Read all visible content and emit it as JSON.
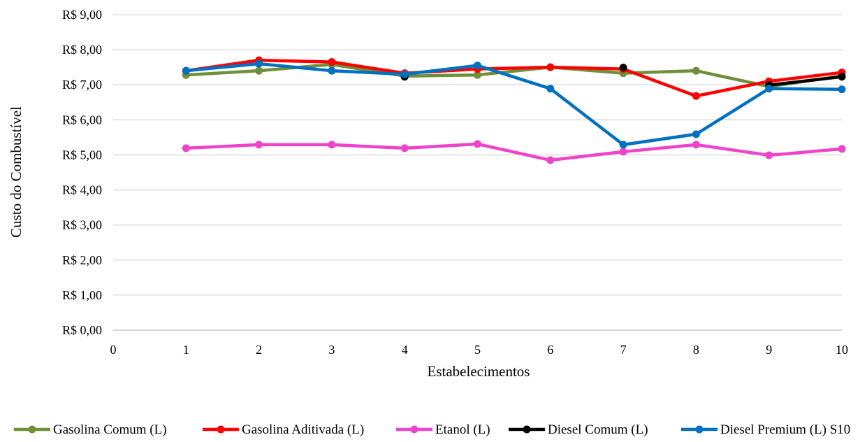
{
  "chart_data": {
    "type": "line",
    "title": "",
    "xlabel": "Estabelecimentos",
    "ylabel": "Custo do Combustível",
    "x_ticks": [
      "0",
      "1",
      "2",
      "3",
      "4",
      "5",
      "6",
      "7",
      "8",
      "9",
      "10"
    ],
    "xlim": [
      0,
      10
    ],
    "ylim": [
      0,
      9
    ],
    "y_ticks": [
      "R$ 0,00",
      "R$ 1,00",
      "R$ 2,00",
      "R$ 3,00",
      "R$ 4,00",
      "R$ 5,00",
      "R$ 6,00",
      "R$ 7,00",
      "R$ 8,00",
      "R$ 9,00"
    ],
    "grid": "horizontal",
    "legend_position": "bottom",
    "x": [
      1,
      2,
      3,
      4,
      5,
      6,
      7,
      8,
      9,
      10
    ],
    "series": [
      {
        "name": "Gasolina Comum (L)",
        "color": "#6f8f3a",
        "values": [
          7.28,
          7.4,
          7.58,
          7.25,
          7.28,
          7.5,
          7.33,
          7.4,
          6.95,
          7.25
        ]
      },
      {
        "name": "Gasolina Aditivada (L)",
        "color": "#ff0000",
        "values": [
          7.4,
          7.7,
          7.65,
          7.33,
          7.45,
          7.5,
          7.45,
          6.68,
          7.1,
          7.35
        ]
      },
      {
        "name": "Etanol (L)",
        "color": "#ee44cc",
        "values": [
          5.19,
          5.29,
          5.29,
          5.19,
          5.31,
          4.85,
          5.09,
          5.29,
          4.99,
          5.17
        ]
      },
      {
        "name": "Diesel Comum (L)",
        "color": "#000000",
        "values": [
          null,
          null,
          null,
          7.23,
          null,
          null,
          7.49,
          null,
          6.99,
          7.23
        ]
      },
      {
        "name": "Diesel Premium (L) S10",
        "color": "#0070c0",
        "values": [
          7.4,
          7.6,
          7.4,
          7.3,
          7.55,
          6.89,
          5.29,
          5.59,
          6.89,
          6.87
        ]
      }
    ]
  }
}
